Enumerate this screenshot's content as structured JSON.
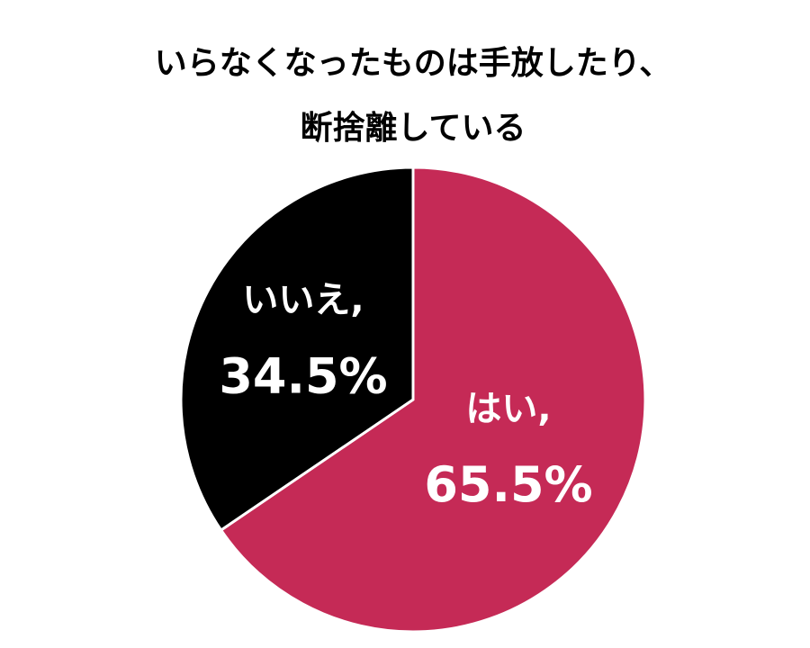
{
  "chart_data": {
    "type": "pie",
    "title": [
      "いらなくなったものは手放したり、",
      "断捨離している"
    ],
    "categories": [
      "はい,",
      "いいえ,"
    ],
    "values": [
      65.5,
      34.5
    ],
    "value_labels": [
      "65.5%",
      "34.5%"
    ],
    "colors": [
      "#c52a56",
      "#000000"
    ]
  }
}
